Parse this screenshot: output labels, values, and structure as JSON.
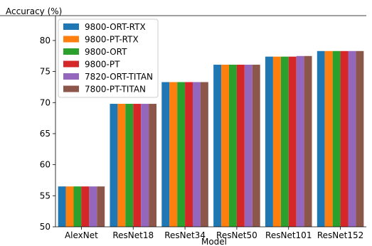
{
  "chart_data": {
    "type": "bar",
    "ylabel": "Accuracy (%)",
    "xlabel": "Model",
    "ylim": [
      50,
      84
    ],
    "yticks": [
      50,
      55,
      60,
      65,
      70,
      75,
      80
    ],
    "categories": [
      "AlexNet",
      "ResNet18",
      "ResNet34",
      "ResNet50",
      "ResNet101",
      "ResNet152"
    ],
    "series": [
      {
        "name": "9800-ORT-RTX",
        "color": "#1f77b4",
        "values": [
          56.5,
          69.8,
          73.3,
          76.1,
          77.4,
          78.3
        ]
      },
      {
        "name": "9800-PT-RTX",
        "color": "#ff7f0e",
        "values": [
          56.5,
          69.8,
          73.3,
          76.1,
          77.4,
          78.3
        ]
      },
      {
        "name": "9800-ORT",
        "color": "#2ca02c",
        "values": [
          56.5,
          69.8,
          73.3,
          76.1,
          77.4,
          78.3
        ]
      },
      {
        "name": "9800-PT",
        "color": "#d62728",
        "values": [
          56.5,
          69.8,
          73.3,
          76.1,
          77.4,
          78.3
        ]
      },
      {
        "name": "7820-ORT-TITAN",
        "color": "#9467bd",
        "values": [
          56.5,
          69.8,
          73.3,
          76.1,
          77.5,
          78.3
        ]
      },
      {
        "name": "7800-PT-TITAN",
        "color": "#8c564b",
        "values": [
          56.5,
          69.8,
          73.3,
          76.1,
          77.5,
          78.3
        ]
      }
    ],
    "legend": "top-left",
    "grid": false
  }
}
